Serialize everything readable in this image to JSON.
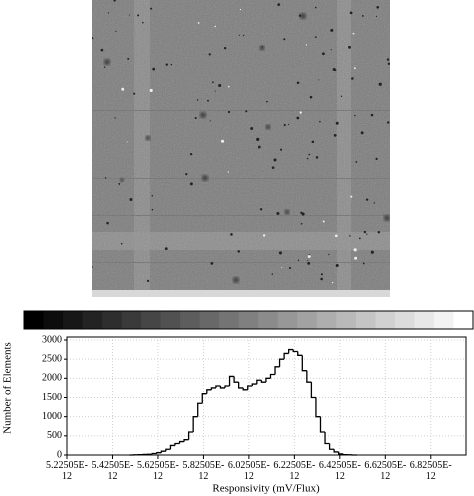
{
  "chart_data": {
    "type": "histogram",
    "xlabel": "Responsivity (mV/Flux)",
    "ylabel": "Number of Elements",
    "bins": [
      5.5e-12,
      5.52e-12,
      5.54e-12,
      5.56e-12,
      5.58e-12,
      5.6e-12,
      5.62e-12,
      5.64e-12,
      5.66e-12,
      5.68e-12,
      5.7e-12,
      5.72e-12,
      5.74e-12,
      5.76e-12,
      5.78e-12,
      5.8e-12,
      5.82e-12,
      5.84e-12,
      5.86e-12,
      5.88e-12,
      5.9e-12,
      5.92e-12,
      5.94e-12,
      5.96e-12,
      5.98e-12,
      6e-12,
      6.02e-12,
      6.04e-12,
      6.06e-12,
      6.08e-12,
      6.1e-12,
      6.12e-12,
      6.14e-12,
      6.16e-12,
      6.18e-12,
      6.2e-12,
      6.22e-12,
      6.24e-12,
      6.26e-12,
      6.28e-12,
      6.3e-12,
      6.32e-12,
      6.34e-12,
      6.36e-12,
      6.38e-12,
      6.4e-12,
      6.42e-12,
      6.44e-12,
      6.46e-12,
      6.48e-12,
      6.5e-12
    ],
    "values": [
      0,
      5,
      10,
      15,
      20,
      40,
      60,
      100,
      150,
      250,
      300,
      350,
      400,
      600,
      1000,
      1350,
      1600,
      1700,
      1750,
      1800,
      1750,
      1800,
      2050,
      1900,
      1750,
      1700,
      1800,
      1850,
      1950,
      1900,
      2000,
      2100,
      2300,
      2500,
      2650,
      2750,
      2700,
      2600,
      2200,
      1900,
      1500,
      1000,
      600,
      300,
      150,
      80,
      30,
      10,
      5,
      0
    ],
    "color": "#000000",
    "xlim": [
      5.22505e-12,
      6.98e-12
    ],
    "xticks": [
      {
        "value": 5.22505e-12,
        "label": "5.22505E-\n12"
      },
      {
        "value": 5.42505e-12,
        "label": "5.42505E-\n12"
      },
      {
        "value": 5.62505e-12,
        "label": "5.62505E-\n12"
      },
      {
        "value": 5.82505e-12,
        "label": "5.82505E-\n12"
      },
      {
        "value": 6.02505e-12,
        "label": "6.02505E-\n12"
      },
      {
        "value": 6.22505e-12,
        "label": "6.22505E-\n12"
      },
      {
        "value": 6.42505e-12,
        "label": "6.42505E-\n12"
      },
      {
        "value": 6.62505e-12,
        "label": "6.62505E-\n12"
      },
      {
        "value": 6.82505e-12,
        "label": "6.82505E-\n12"
      }
    ],
    "ylim": [
      0,
      3000
    ],
    "yticks": [
      0,
      500,
      1000,
      1500,
      2000,
      2500,
      3000
    ],
    "grid": true
  }
}
